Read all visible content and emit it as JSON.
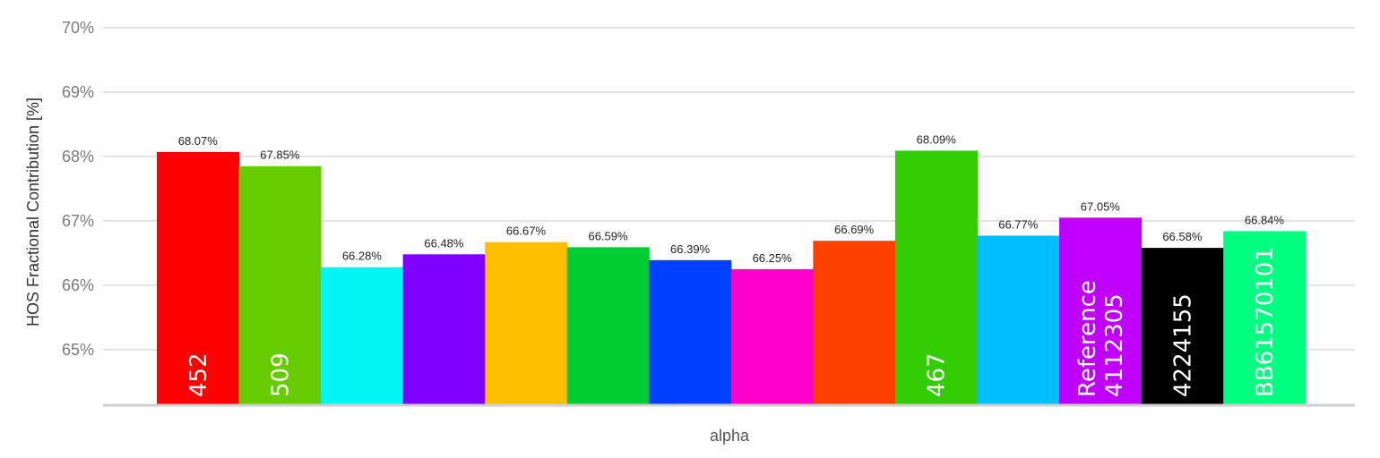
{
  "chart_data": {
    "type": "bar",
    "xlabel": "alpha",
    "ylabel": "HOS Fractional Contribution [%]",
    "ylim": [
      64.15,
      70
    ],
    "yticks": [
      "65%",
      "66%",
      "67%",
      "68%",
      "69%",
      "70%"
    ],
    "ytick_values": [
      65,
      66,
      67,
      68,
      69,
      70
    ],
    "grid": true,
    "bars": [
      {
        "value": 68.07,
        "label": "68.07%",
        "inner_text": "452",
        "color": "#ff0000"
      },
      {
        "value": 67.85,
        "label": "67.85%",
        "inner_text": "509",
        "color": "#66cc00"
      },
      {
        "value": 66.28,
        "label": "66.28%",
        "inner_text": "",
        "color": "#00f5f5"
      },
      {
        "value": 66.48,
        "label": "66.48%",
        "inner_text": "",
        "color": "#8000ff"
      },
      {
        "value": 66.67,
        "label": "66.67%",
        "inner_text": "",
        "color": "#ffbf00"
      },
      {
        "value": 66.59,
        "label": "66.59%",
        "inner_text": "",
        "color": "#00cc33"
      },
      {
        "value": 66.39,
        "label": "66.39%",
        "inner_text": "",
        "color": "#0040ff"
      },
      {
        "value": 66.25,
        "label": "66.25%",
        "inner_text": "",
        "color": "#ff00cc"
      },
      {
        "value": 66.69,
        "label": "66.69%",
        "inner_text": "",
        "color": "#ff4000"
      },
      {
        "value": 68.09,
        "label": "68.09%",
        "inner_text": "467",
        "color": "#33cc00"
      },
      {
        "value": 66.77,
        "label": "66.77%",
        "inner_text": "",
        "color": "#00bfff"
      },
      {
        "value": 67.05,
        "label": "67.05%",
        "inner_text": "Reference 4112305",
        "color": "#bf00ff"
      },
      {
        "value": 66.58,
        "label": "66.58%",
        "inner_text": "4224155",
        "color": "#000000"
      },
      {
        "value": 66.84,
        "label": "66.84%",
        "inner_text": "BB61570101",
        "color": "#00ff80"
      }
    ]
  }
}
